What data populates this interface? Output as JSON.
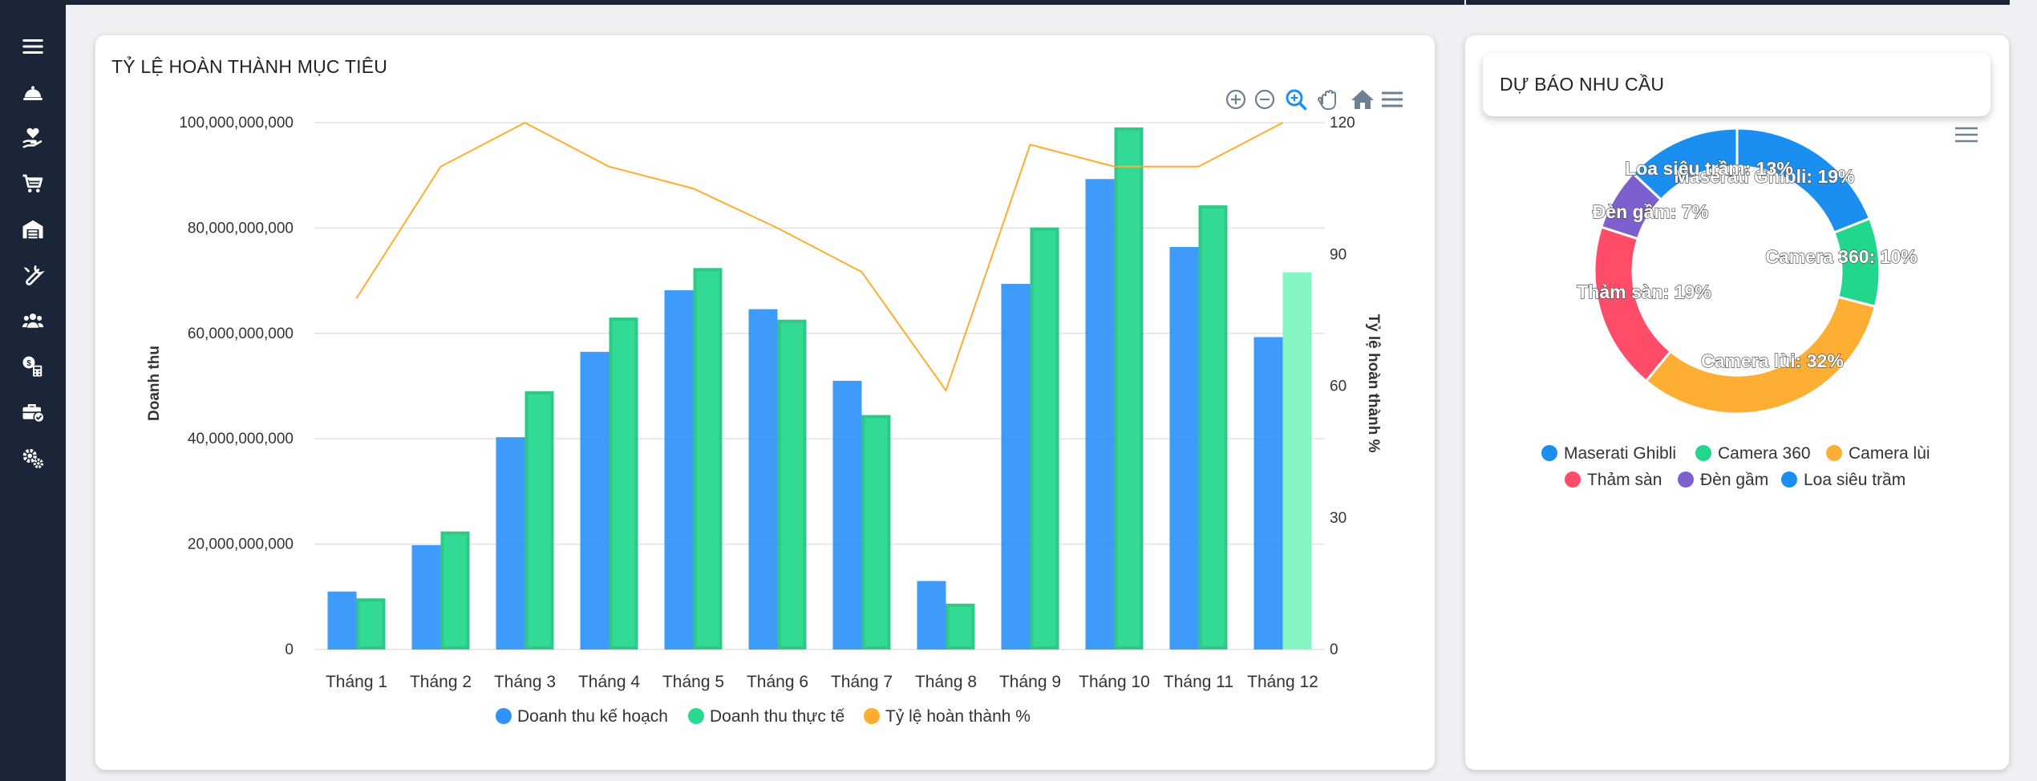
{
  "sidebar": {
    "items": [
      {
        "icon": "menu-icon"
      },
      {
        "icon": "service-bell-icon"
      },
      {
        "icon": "hand-heart-icon"
      },
      {
        "icon": "shopping-cart-icon"
      },
      {
        "icon": "warehouse-icon"
      },
      {
        "icon": "tools-icon"
      },
      {
        "icon": "users-icon"
      },
      {
        "icon": "money-calculator-icon"
      },
      {
        "icon": "briefcase-check-icon"
      },
      {
        "icon": "gears-icon"
      }
    ]
  },
  "colors": {
    "sidebar_bg": "#1a2538",
    "plan": "#2e93fa",
    "actual": "#29d990",
    "rate": "#ffad2f",
    "pie": [
      "#1b8ff0",
      "#22d68c",
      "#ffae34",
      "#ff4d69",
      "#7d5fd0",
      "#1b8ff0"
    ]
  },
  "target_card": {
    "title": "TỶ LỆ HOÀN THÀNH MỤC TIÊU",
    "toolbar": [
      "zoom-in-icon",
      "zoom-out-icon",
      "selection-zoom-icon",
      "pan-hand-icon",
      "reset-home-icon",
      "chart-menu-icon"
    ]
  },
  "forecast_card": {
    "title": "DỰ BÁO NHU CẦU",
    "toolbar": [
      "chart-menu-icon"
    ]
  },
  "chart_data": [
    {
      "type": "bar",
      "title": "TỶ LỆ HOÀN THÀNH MỤC TIÊU",
      "categories": [
        "Tháng 1",
        "Tháng 2",
        "Tháng 3",
        "Tháng 4",
        "Tháng 5",
        "Tháng 6",
        "Tháng 7",
        "Tháng 8",
        "Tháng 9",
        "Tháng 10",
        "Tháng 11",
        "Tháng 12"
      ],
      "series": [
        {
          "name": "Doanh thu kế hoạch",
          "type": "bar",
          "axis": "left",
          "values": [
            11000000000,
            19800000000,
            40300000000,
            56500000000,
            68200000000,
            64600000000,
            51000000000,
            13000000000,
            69400000000,
            89300000000,
            76400000000,
            59300000000
          ]
        },
        {
          "name": "Doanh thu thực tế",
          "type": "bar",
          "axis": "left",
          "values": [
            9400000000,
            22100000000,
            48700000000,
            62700000000,
            72100000000,
            62300000000,
            44200000000,
            8400000000,
            79800000000,
            98800000000,
            84000000000,
            71300000000
          ]
        },
        {
          "name": "Tỷ lệ hoàn thành %",
          "type": "line",
          "axis": "right",
          "values": [
            80,
            110,
            120,
            110,
            105,
            96,
            86,
            59,
            115,
            110,
            110,
            120
          ]
        }
      ],
      "ylabel": "Doanh thu",
      "y2label": "Tỷ lệ hoàn thành %",
      "ylim": [
        0,
        100000000000
      ],
      "y2lim": [
        0,
        120
      ],
      "yticks": [
        "0",
        "20,000,000,000",
        "40,000,000,000",
        "60,000,000,000",
        "80,000,000,000",
        "100,000,000,000"
      ],
      "y2ticks": [
        "0",
        "30",
        "60",
        "90",
        "120"
      ],
      "grid": true,
      "legend": "bottom-center"
    },
    {
      "type": "pie",
      "variant": "donut",
      "title": "DỰ BÁO NHU CẦU",
      "labels": [
        "Maserati Ghibli",
        "Camera 360",
        "Camera lùi",
        "Thảm sàn",
        "Đèn gầm",
        "Loa siêu trầm"
      ],
      "values": [
        19,
        10,
        32,
        19,
        7,
        13
      ],
      "data_labels": [
        "Maserati Ghibli: 19%",
        "Camera 360: 10%",
        "Camera lùi: 32%",
        "Thảm sàn: 19%",
        "Đèn gầm: 7%",
        "Loa siêu trầm: 13%"
      ],
      "legend": "bottom-center"
    }
  ]
}
